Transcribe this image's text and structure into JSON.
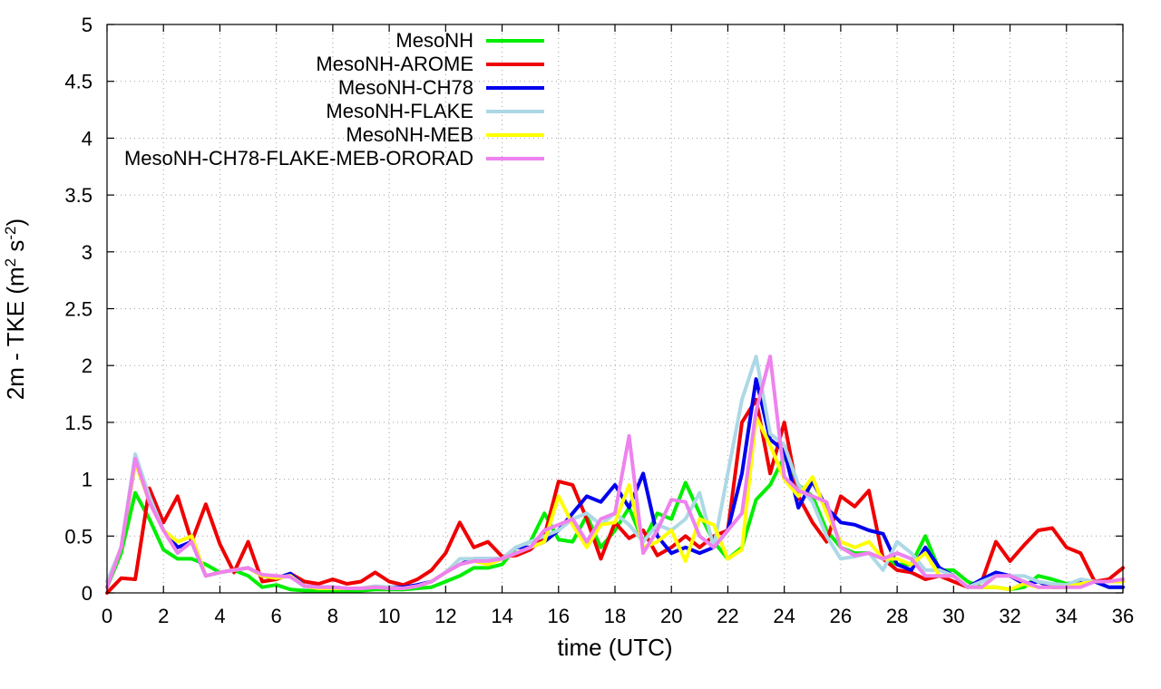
{
  "chart_data": {
    "type": "line",
    "title": "",
    "xlabel": "time (UTC)",
    "ylabel_parts": {
      "a": "2m - TKE (m",
      "sup1": "2",
      "b": " s",
      "sup2": "-2",
      "c": ")"
    },
    "xlim": [
      0,
      36
    ],
    "ylim": [
      0,
      5
    ],
    "xticks": [
      0,
      2,
      4,
      6,
      8,
      10,
      12,
      14,
      16,
      18,
      20,
      22,
      24,
      26,
      28,
      30,
      32,
      34,
      36
    ],
    "yticks": [
      0,
      0.5,
      1,
      1.5,
      2,
      2.5,
      3,
      3.5,
      4,
      4.5,
      5
    ],
    "ytick_labels": [
      "0",
      "0.5",
      "1",
      "1.5",
      "2",
      "2.5",
      "3",
      "3.5",
      "4",
      "4.5",
      "5"
    ],
    "grid": true,
    "legend_position": "top-left",
    "x": [
      0,
      0.5,
      1,
      1.5,
      2,
      2.5,
      3,
      3.5,
      4,
      4.5,
      5,
      5.5,
      6,
      6.5,
      7,
      7.5,
      8,
      8.5,
      9,
      9.5,
      10,
      10.5,
      11,
      11.5,
      12,
      12.5,
      13,
      13.5,
      14,
      14.5,
      15,
      15.5,
      16,
      16.5,
      17,
      17.5,
      18,
      18.5,
      19,
      19.5,
      20,
      20.5,
      21,
      21.5,
      22,
      22.5,
      23,
      23.5,
      24,
      24.5,
      25,
      25.5,
      26,
      26.5,
      27,
      27.5,
      28,
      28.5,
      29,
      29.5,
      30,
      30.5,
      31,
      31.5,
      32,
      32.5,
      33,
      33.5,
      34,
      34.5,
      35,
      35.5,
      36
    ],
    "series": [
      {
        "name": "MesoNH",
        "color": "#00ee00",
        "values": [
          0.05,
          0.35,
          0.88,
          0.65,
          0.38,
          0.3,
          0.3,
          0.25,
          0.18,
          0.2,
          0.15,
          0.05,
          0.07,
          0.03,
          0.02,
          0.02,
          0.02,
          0.02,
          0.02,
          0.03,
          0.03,
          0.03,
          0.04,
          0.05,
          0.1,
          0.15,
          0.22,
          0.22,
          0.25,
          0.4,
          0.45,
          0.7,
          0.47,
          0.45,
          0.68,
          0.4,
          0.55,
          0.75,
          0.45,
          0.7,
          0.65,
          0.97,
          0.7,
          0.45,
          0.3,
          0.4,
          0.82,
          0.95,
          1.2,
          0.95,
          0.85,
          0.55,
          0.4,
          0.35,
          0.35,
          0.3,
          0.25,
          0.25,
          0.5,
          0.2,
          0.2,
          0.1,
          0.05,
          0.05,
          0.03,
          0.05,
          0.15,
          0.12,
          0.08,
          0.1,
          0.1,
          0.05,
          0.05
        ]
      },
      {
        "name": "MesoNH-AROME",
        "color": "#ee0000",
        "values": [
          0.0,
          0.13,
          0.12,
          0.92,
          0.62,
          0.85,
          0.45,
          0.78,
          0.43,
          0.18,
          0.45,
          0.1,
          0.12,
          0.17,
          0.1,
          0.08,
          0.12,
          0.08,
          0.1,
          0.18,
          0.1,
          0.07,
          0.12,
          0.2,
          0.35,
          0.62,
          0.4,
          0.45,
          0.32,
          0.33,
          0.38,
          0.5,
          0.98,
          0.95,
          0.65,
          0.3,
          0.62,
          0.48,
          0.55,
          0.33,
          0.4,
          0.5,
          0.4,
          0.5,
          0.55,
          1.5,
          1.7,
          1.05,
          1.5,
          0.85,
          0.62,
          0.45,
          0.85,
          0.76,
          0.9,
          0.3,
          0.2,
          0.18,
          0.12,
          0.15,
          0.1,
          0.05,
          0.1,
          0.45,
          0.28,
          0.42,
          0.55,
          0.57,
          0.4,
          0.35,
          0.1,
          0.12,
          0.22
        ]
      },
      {
        "name": "MesoNH-CH78",
        "color": "#0000ee",
        "values": [
          0.05,
          0.4,
          1.15,
          0.85,
          0.55,
          0.4,
          0.45,
          0.15,
          0.18,
          0.2,
          0.22,
          0.15,
          0.13,
          0.17,
          0.06,
          0.05,
          0.05,
          0.04,
          0.04,
          0.05,
          0.05,
          0.05,
          0.07,
          0.1,
          0.18,
          0.25,
          0.3,
          0.3,
          0.3,
          0.4,
          0.4,
          0.45,
          0.55,
          0.7,
          0.85,
          0.8,
          0.95,
          0.75,
          1.05,
          0.5,
          0.35,
          0.4,
          0.35,
          0.4,
          0.55,
          1.05,
          1.88,
          1.35,
          1.25,
          0.75,
          0.98,
          0.75,
          0.62,
          0.6,
          0.55,
          0.52,
          0.25,
          0.2,
          0.4,
          0.22,
          0.15,
          0.05,
          0.12,
          0.18,
          0.15,
          0.08,
          0.1,
          0.05,
          0.05,
          0.1,
          0.1,
          0.05,
          0.05
        ]
      },
      {
        "name": "MesoNH-FLAKE",
        "color": "#add8e6",
        "values": [
          0.1,
          0.4,
          1.22,
          0.85,
          0.55,
          0.45,
          0.5,
          0.15,
          0.18,
          0.2,
          0.22,
          0.15,
          0.14,
          0.15,
          0.05,
          0.05,
          0.05,
          0.04,
          0.04,
          0.06,
          0.05,
          0.04,
          0.06,
          0.1,
          0.18,
          0.3,
          0.3,
          0.3,
          0.3,
          0.4,
          0.45,
          0.5,
          0.55,
          0.65,
          0.7,
          0.6,
          0.7,
          0.6,
          0.45,
          0.6,
          0.55,
          0.65,
          0.88,
          0.4,
          1.05,
          1.7,
          2.08,
          1.4,
          1.3,
          0.95,
          0.8,
          0.5,
          0.3,
          0.32,
          0.35,
          0.2,
          0.45,
          0.35,
          0.2,
          0.2,
          0.15,
          0.05,
          0.1,
          0.15,
          0.15,
          0.15,
          0.1,
          0.08,
          0.07,
          0.12,
          0.1,
          0.1,
          0.1
        ]
      },
      {
        "name": "MesoNH-MEB",
        "color": "#ffff00",
        "values": [
          0.05,
          0.4,
          1.15,
          0.8,
          0.55,
          0.45,
          0.5,
          0.15,
          0.18,
          0.2,
          0.22,
          0.15,
          0.13,
          0.15,
          0.06,
          0.04,
          0.04,
          0.04,
          0.04,
          0.05,
          0.04,
          0.04,
          0.06,
          0.1,
          0.18,
          0.25,
          0.28,
          0.25,
          0.3,
          0.35,
          0.4,
          0.45,
          0.85,
          0.6,
          0.4,
          0.6,
          0.62,
          0.95,
          0.4,
          0.45,
          0.55,
          0.28,
          0.65,
          0.6,
          0.3,
          0.38,
          1.55,
          1.3,
          1.0,
          0.85,
          1.02,
          0.7,
          0.45,
          0.4,
          0.45,
          0.3,
          0.3,
          0.25,
          0.35,
          0.15,
          0.15,
          0.05,
          0.05,
          0.05,
          0.03,
          0.08,
          0.05,
          0.05,
          0.05,
          0.08,
          0.1,
          0.1,
          0.1
        ]
      },
      {
        "name": "MesoNH-CH78-FLAKE-MEB-ORORAD",
        "color": "#ee82ee",
        "values": [
          0.05,
          0.4,
          1.18,
          0.8,
          0.55,
          0.35,
          0.45,
          0.15,
          0.18,
          0.2,
          0.22,
          0.16,
          0.15,
          0.14,
          0.06,
          0.05,
          0.05,
          0.04,
          0.04,
          0.05,
          0.04,
          0.04,
          0.06,
          0.1,
          0.18,
          0.25,
          0.28,
          0.28,
          0.3,
          0.35,
          0.4,
          0.55,
          0.6,
          0.65,
          0.45,
          0.65,
          0.7,
          1.38,
          0.35,
          0.55,
          0.82,
          0.8,
          0.5,
          0.4,
          0.55,
          0.7,
          1.6,
          2.08,
          1.02,
          0.9,
          0.85,
          0.8,
          0.4,
          0.33,
          0.35,
          0.3,
          0.35,
          0.3,
          0.15,
          0.15,
          0.15,
          0.05,
          0.05,
          0.15,
          0.15,
          0.1,
          0.05,
          0.05,
          0.05,
          0.05,
          0.1,
          0.1,
          0.12
        ]
      }
    ]
  }
}
